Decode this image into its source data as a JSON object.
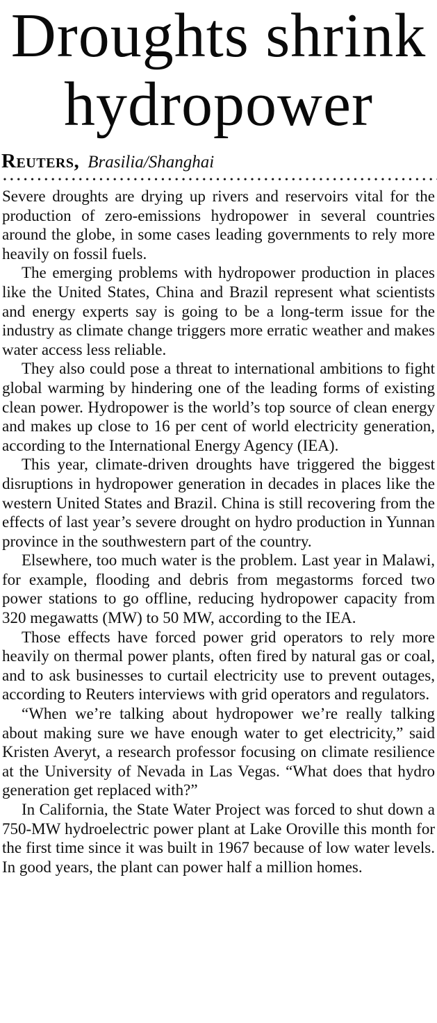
{
  "page": {
    "background_color": "#ffffff",
    "text_color": "#0f0f0f"
  },
  "article": {
    "headline": "Droughts shrink hydropower",
    "byline": {
      "agency": "Reuters,",
      "location": "Brasilia/Shanghai"
    },
    "paragraphs": [
      "Severe droughts are drying up rivers and reservoirs vital for the production of zero-emissions hydropower in several countries around the globe, in some cases leading governments to rely more heavily on fossil fuels.",
      "The emerging problems with hydropower production in places like the United States, China and Brazil represent what scientists and energy experts say is going to be a long-term issue for the industry as climate change triggers more erratic weather and makes water access less reliable.",
      "They also could pose a threat to international ambitions to fight global warming by hindering one of the leading forms of existing clean power. Hydropower is the world’s top source of clean energy and makes up close to 16 per cent of world electricity generation, according to the International Energy Agency (IEA).",
      "This year, climate-driven droughts have triggered the biggest disruptions in hydropower generation in decades in places like the western United States and Brazil. China is still recovering from the effects of last year’s severe drought on hydro production in Yunnan province in the southwestern part of the country.",
      "Elsewhere, too much water is the problem. Last year in Malawi, for example, flooding and debris from megastorms forced two power stations to go offline, reducing hydropower capacity from 320 megawatts (MW) to 50 MW, according to the IEA.",
      "Those effects have forced power grid operators to rely more heavily on thermal power plants, often fired by natural gas or coal, and to ask businesses to curtail electricity use to prevent outages, according to Reuters interviews with grid operators and regulators.",
      "“When we’re talking about hydropower we’re really talking about making sure we have enough water to get electricity,” said Kristen Averyt, a research professor focusing on climate resilience at the University of Nevada in Las Vegas. “What does that hydro generation get replaced with?”",
      "In California, the State Water Project was forced to shut down a 750-MW hydroelectric power plant at Lake Oroville this month for the first time since it was built in 1967 because of low water levels. In good years, the plant can power half a million homes."
    ]
  }
}
